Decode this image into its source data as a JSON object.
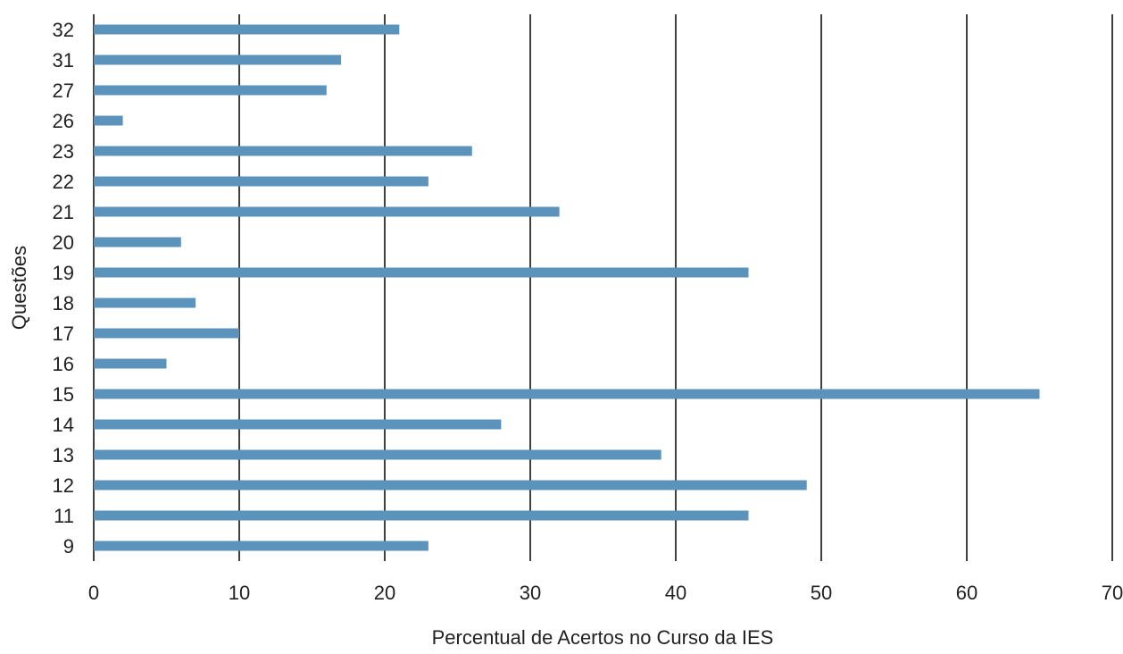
{
  "chart_data": {
    "type": "bar",
    "orientation": "horizontal",
    "categories": [
      "9",
      "11",
      "12",
      "13",
      "14",
      "15",
      "16",
      "17",
      "18",
      "19",
      "20",
      "21",
      "22",
      "23",
      "26",
      "27",
      "31",
      "32"
    ],
    "values": [
      23,
      45,
      49,
      39,
      28,
      65,
      5,
      10,
      7,
      45,
      6,
      32,
      23,
      26,
      2,
      16,
      17,
      21
    ],
    "xlabel": "Percentual de Acertos no Curso da IES",
    "ylabel": "Questões",
    "xlim": [
      0,
      70
    ],
    "xticks": [
      "0",
      "10",
      "20",
      "30",
      "40",
      "50",
      "60",
      "70"
    ],
    "grid": "vertical",
    "legend": "none",
    "bar_color": "#5b93bd",
    "grid_color": "#000000"
  }
}
